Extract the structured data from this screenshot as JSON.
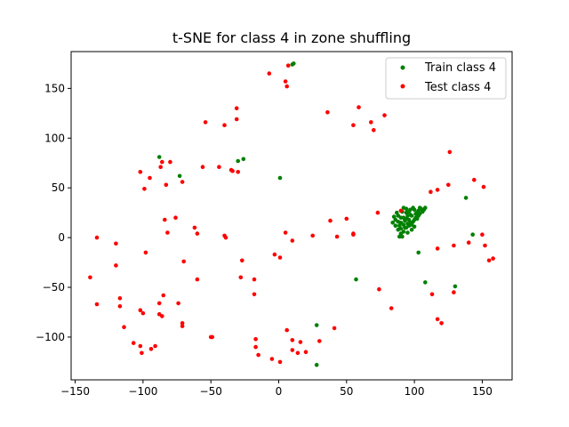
{
  "chart_data": {
    "type": "scatter",
    "title": "t-SNE for class 4 in zone shuffling",
    "xlabel": "",
    "ylabel": "",
    "xlim": [
      -153,
      172
    ],
    "ylim": [
      -143,
      187
    ],
    "xticks": [
      -150,
      -100,
      -50,
      0,
      50,
      100,
      150
    ],
    "yticks": [
      -100,
      -50,
      0,
      50,
      100,
      150
    ],
    "grid": false,
    "legend_position": "top-right",
    "series": [
      {
        "name": "Train class 4",
        "color": "#008000",
        "points": [
          [
            11,
            175
          ],
          [
            10,
            174
          ],
          [
            -88,
            81
          ],
          [
            -26,
            79
          ],
          [
            -30,
            77
          ],
          [
            -73,
            62
          ],
          [
            1,
            60
          ],
          [
            138,
            40
          ],
          [
            143,
            3
          ],
          [
            103,
            -15
          ],
          [
            57,
            -42
          ],
          [
            108,
            -45
          ],
          [
            130,
            -49
          ],
          [
            28,
            -88
          ],
          [
            28,
            -128
          ],
          [
            86,
            18
          ],
          [
            88,
            22
          ],
          [
            90,
            15
          ],
          [
            92,
            20
          ],
          [
            94,
            25
          ],
          [
            96,
            18
          ],
          [
            98,
            22
          ],
          [
            100,
            28
          ],
          [
            102,
            25
          ],
          [
            104,
            30
          ],
          [
            89,
            12
          ],
          [
            91,
            26
          ],
          [
            93,
            10
          ],
          [
            95,
            14
          ],
          [
            97,
            28
          ],
          [
            99,
            16
          ],
          [
            101,
            20
          ],
          [
            103,
            27
          ],
          [
            105,
            29
          ],
          [
            88,
            8
          ],
          [
            90,
            4
          ],
          [
            92,
            6
          ],
          [
            94,
            10
          ],
          [
            96,
            12
          ],
          [
            98,
            8
          ],
          [
            100,
            18
          ],
          [
            87,
            25
          ],
          [
            85,
            21
          ],
          [
            84,
            15
          ],
          [
            92,
            30
          ],
          [
            94,
            29
          ],
          [
            97,
            23
          ],
          [
            99,
            30
          ],
          [
            101,
            24
          ],
          [
            103,
            22
          ],
          [
            106,
            26
          ],
          [
            107,
            28
          ],
          [
            95,
            5
          ],
          [
            91,
            1
          ],
          [
            89,
            1
          ],
          [
            93,
            17
          ],
          [
            95,
            22
          ],
          [
            97,
            15
          ],
          [
            86,
            12
          ],
          [
            88,
            16
          ],
          [
            90,
            20
          ],
          [
            96,
            26
          ],
          [
            102,
            19
          ],
          [
            104,
            24
          ],
          [
            100,
            11
          ],
          [
            98,
            13
          ],
          [
            94,
            19
          ],
          [
            92,
            13
          ],
          [
            90,
            9
          ],
          [
            108,
            30
          ]
        ]
      },
      {
        "name": "Test class 4",
        "color": "#ff0000",
        "points": [
          [
            7,
            173
          ],
          [
            -7,
            165
          ],
          [
            5,
            157
          ],
          [
            6,
            152
          ],
          [
            59,
            131
          ],
          [
            -31,
            130
          ],
          [
            36,
            126
          ],
          [
            78,
            123
          ],
          [
            -31,
            119
          ],
          [
            -54,
            116
          ],
          [
            68,
            116
          ],
          [
            55,
            113
          ],
          [
            -40,
            113
          ],
          [
            70,
            108
          ],
          [
            126,
            86
          ],
          [
            -86,
            76
          ],
          [
            -80,
            76
          ],
          [
            -87,
            71
          ],
          [
            -44,
            71
          ],
          [
            -56,
            71
          ],
          [
            -35,
            68
          ],
          [
            -34,
            67
          ],
          [
            -30,
            66
          ],
          [
            -102,
            66
          ],
          [
            -95,
            60
          ],
          [
            -71,
            56
          ],
          [
            -83,
            53
          ],
          [
            -99,
            49
          ],
          [
            144,
            58
          ],
          [
            125,
            53
          ],
          [
            151,
            51
          ],
          [
            117,
            48
          ],
          [
            112,
            46
          ],
          [
            -84,
            18
          ],
          [
            -76,
            20
          ],
          [
            -82,
            5
          ],
          [
            -62,
            10
          ],
          [
            -60,
            4
          ],
          [
            -40,
            2
          ],
          [
            -39,
            0
          ],
          [
            -134,
            0
          ],
          [
            5,
            5
          ],
          [
            10,
            -3
          ],
          [
            25,
            2
          ],
          [
            38,
            17
          ],
          [
            43,
            1
          ],
          [
            50,
            19
          ],
          [
            55,
            4
          ],
          [
            55,
            3
          ],
          [
            73,
            25
          ],
          [
            -120,
            -6
          ],
          [
            -98,
            -15
          ],
          [
            -70,
            -24
          ],
          [
            -27,
            -23
          ],
          [
            -3,
            -17
          ],
          [
            1,
            -20
          ],
          [
            -120,
            -28
          ],
          [
            -139,
            -40
          ],
          [
            -60,
            -42
          ],
          [
            -28,
            -40
          ],
          [
            -18,
            -42
          ],
          [
            117,
            -11
          ],
          [
            129,
            -8
          ],
          [
            140,
            -5
          ],
          [
            150,
            3
          ],
          [
            152,
            -8
          ],
          [
            158,
            -21
          ],
          [
            155,
            -23
          ],
          [
            74,
            -52
          ],
          [
            83,
            -71
          ],
          [
            113,
            -57
          ],
          [
            117,
            -82
          ],
          [
            120,
            -86
          ],
          [
            129,
            -55
          ],
          [
            -134,
            -67
          ],
          [
            -117,
            -61
          ],
          [
            -117,
            -69
          ],
          [
            -85,
            -58
          ],
          [
            -74,
            -66
          ],
          [
            -88,
            -66
          ],
          [
            -18,
            -57
          ],
          [
            -102,
            -73
          ],
          [
            -100,
            -76
          ],
          [
            -88,
            -77
          ],
          [
            -86,
            -79
          ],
          [
            -71,
            -86
          ],
          [
            -71,
            -89
          ],
          [
            -114,
            -90
          ],
          [
            -50,
            -100
          ],
          [
            -49,
            -100
          ],
          [
            6,
            -93
          ],
          [
            10,
            -103
          ],
          [
            16,
            -105
          ],
          [
            30,
            -104
          ],
          [
            41,
            -91
          ],
          [
            -17,
            -102
          ],
          [
            -17,
            -110
          ],
          [
            -107,
            -106
          ],
          [
            -102,
            -109
          ],
          [
            -91,
            -109
          ],
          [
            -94,
            -112
          ],
          [
            -101,
            -116
          ],
          [
            -15,
            -118
          ],
          [
            10,
            -113
          ],
          [
            14,
            -116
          ],
          [
            20,
            -115
          ],
          [
            -5,
            -122
          ],
          [
            1,
            -125
          ],
          [
            90,
            27
          ]
        ]
      }
    ]
  }
}
